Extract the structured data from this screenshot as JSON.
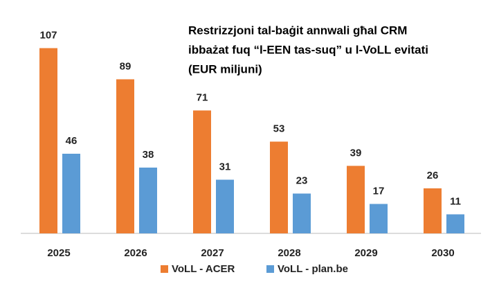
{
  "chart_data": {
    "type": "bar",
    "title": [
      "Restrizzjoni tal-baġit annwali għal CRM",
      "ibbażat fuq “l-EEN tas-suq” u l-VoLL evitati",
      "(EUR miljuni)"
    ],
    "categories": [
      "2025",
      "2026",
      "2027",
      "2028",
      "2029",
      "2030"
    ],
    "series": [
      {
        "name": "VoLL - ACER",
        "color": "#ed7d31",
        "values": [
          107,
          89,
          71,
          53,
          39,
          26
        ]
      },
      {
        "name": "VoLL - plan.be",
        "color": "#5b9bd5",
        "values": [
          46,
          38,
          31,
          23,
          17,
          11
        ]
      }
    ]
  }
}
